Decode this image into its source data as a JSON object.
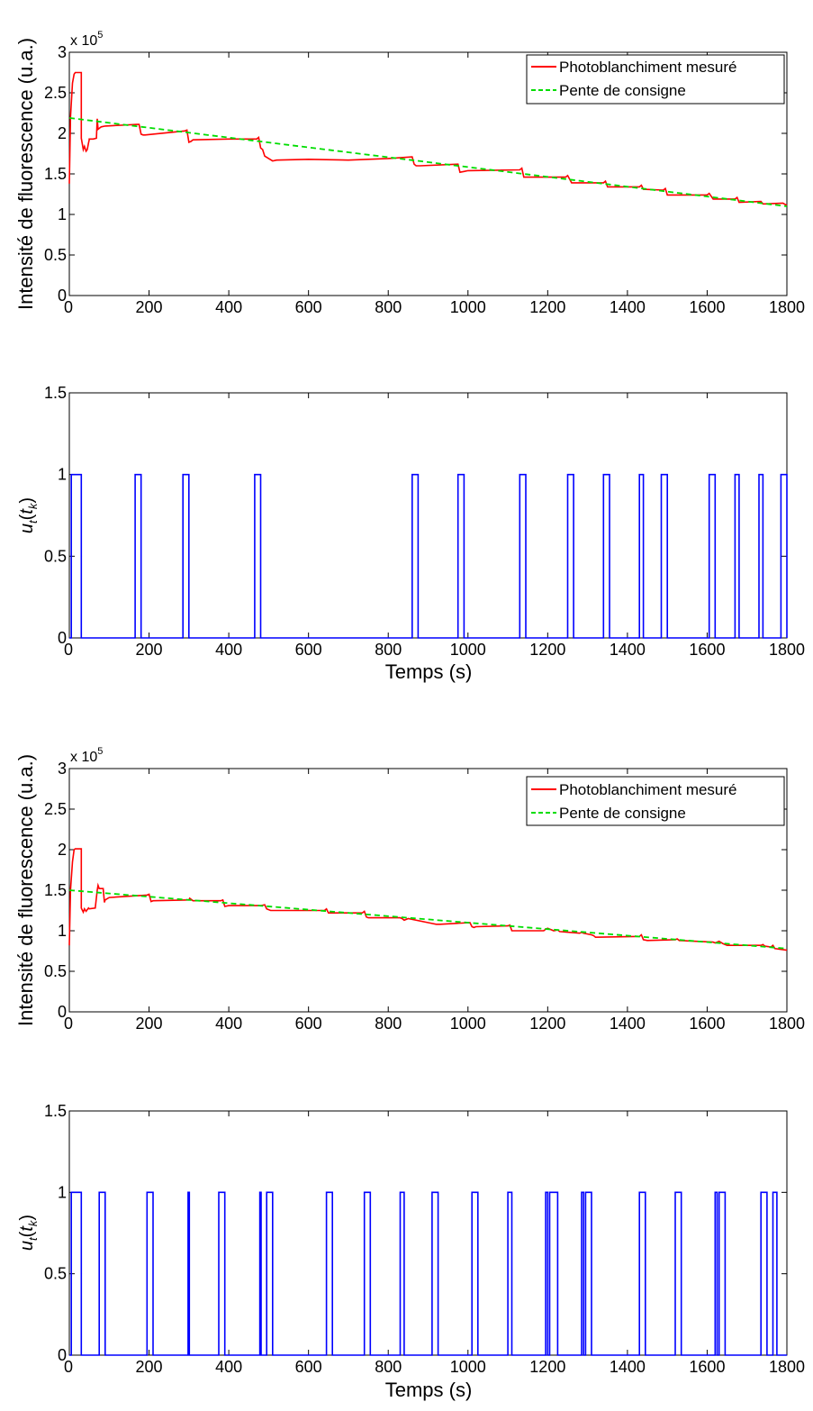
{
  "chart_data": [
    {
      "type": "line",
      "ylabel": "Intensité de fluorescence (u.a.)",
      "xlabel": "",
      "exponent_label": "x 10",
      "exponent_power": "5",
      "xlim": [
        0,
        1800
      ],
      "ylim": [
        0,
        3
      ],
      "x_ticks": [
        "0",
        "200",
        "400",
        "600",
        "800",
        "1000",
        "1200",
        "1400",
        "1600",
        "1800"
      ],
      "y_ticks": [
        "0",
        "0.5",
        "1",
        "1.5",
        "2",
        "2.5",
        "3"
      ],
      "legend": {
        "position": "top-right",
        "entries": [
          "Photoblanchiment mesuré",
          "Pente de consigne"
        ]
      },
      "colors": {
        "measured": "#ff0000",
        "setpoint": "#00dd00"
      },
      "series": [
        {
          "name": "Photoblanchiment mesuré",
          "style": "solid",
          "x": [
            0,
            3,
            8,
            12,
            15,
            15,
            30,
            30,
            35,
            38,
            42,
            45,
            48,
            50,
            50,
            60,
            68,
            70,
            72,
            80,
            90,
            170,
            175,
            180,
            185,
            190,
            290,
            295,
            300,
            305,
            310,
            400,
            470,
            475,
            480,
            485,
            490,
            500,
            510,
            520,
            600,
            700,
            800,
            860,
            865,
            870,
            880,
            975,
            980,
            990,
            1000,
            1130,
            1135,
            1140,
            1150,
            1245,
            1250,
            1260,
            1340,
            1345,
            1350,
            1430,
            1435,
            1440,
            1490,
            1495,
            1500,
            1600,
            1605,
            1615,
            1670,
            1675,
            1680,
            1735,
            1740,
            1745,
            1790,
            1800
          ],
          "y": [
            1.38,
            2.2,
            2.62,
            2.73,
            2.75,
            2.75,
            2.75,
            1.94,
            1.8,
            1.84,
            1.78,
            1.8,
            1.88,
            1.92,
            1.93,
            1.93,
            1.94,
            2.18,
            2.05,
            2.08,
            2.09,
            2.11,
            2.11,
            1.99,
            1.98,
            1.98,
            2.03,
            2.04,
            1.89,
            1.9,
            1.92,
            1.93,
            1.93,
            1.95,
            1.82,
            1.8,
            1.72,
            1.69,
            1.66,
            1.67,
            1.68,
            1.67,
            1.69,
            1.71,
            1.62,
            1.6,
            1.6,
            1.62,
            1.52,
            1.53,
            1.54,
            1.55,
            1.57,
            1.46,
            1.46,
            1.46,
            1.48,
            1.39,
            1.39,
            1.41,
            1.34,
            1.34,
            1.36,
            1.31,
            1.3,
            1.32,
            1.24,
            1.24,
            1.26,
            1.19,
            1.19,
            1.21,
            1.15,
            1.16,
            1.13,
            1.13,
            1.14,
            1.11
          ]
        },
        {
          "name": "Pente de consigne",
          "style": "dashed",
          "x": [
            0,
            1800
          ],
          "y": [
            2.19,
            1.1
          ]
        }
      ]
    },
    {
      "type": "line",
      "ylabel": "u_t(t_k)",
      "ylabel_parts": {
        "main": "u",
        "sub1": "t",
        "open": "(",
        "var": "t",
        "sub2": "k",
        "close": ")"
      },
      "xlabel": "Temps (s)",
      "xlim": [
        0,
        1800
      ],
      "ylim": [
        0,
        1.5
      ],
      "x_ticks": [
        "0",
        "200",
        "400",
        "600",
        "800",
        "1000",
        "1200",
        "1400",
        "1600",
        "1800"
      ],
      "y_ticks": [
        "0",
        "0.5",
        "1",
        "1.5"
      ],
      "colors": {
        "control": "#0000ff"
      },
      "series": [
        {
          "pulses": [
            [
              5,
              30
            ],
            [
              165,
              180
            ],
            [
              285,
              300
            ],
            [
              465,
              480
            ],
            [
              860,
              875
            ],
            [
              975,
              990
            ],
            [
              1130,
              1145
            ],
            [
              1250,
              1265
            ],
            [
              1340,
              1355
            ],
            [
              1430,
              1440
            ],
            [
              1485,
              1500
            ],
            [
              1605,
              1620
            ],
            [
              1670,
              1680
            ],
            [
              1730,
              1740
            ],
            [
              1785,
              1800
            ]
          ]
        }
      ]
    },
    {
      "type": "line",
      "ylabel": "Intensité de fluorescence (u.a.)",
      "xlabel": "",
      "exponent_label": "x 10",
      "exponent_power": "5",
      "xlim": [
        0,
        1800
      ],
      "ylim": [
        0,
        3
      ],
      "x_ticks": [
        "0",
        "200",
        "400",
        "600",
        "800",
        "1000",
        "1200",
        "1400",
        "1600",
        "1800"
      ],
      "y_ticks": [
        "0",
        "0.5",
        "1",
        "1.5",
        "2",
        "2.5",
        "3"
      ],
      "legend": {
        "position": "top-right",
        "entries": [
          "Photoblanchiment mesuré",
          "Pente de consigne"
        ]
      },
      "colors": {
        "measured": "#ff0000",
        "setpoint": "#00dd00"
      },
      "series": [
        {
          "name": "Photoblanchiment mesuré",
          "style": "solid",
          "x": [
            0,
            3,
            8,
            12,
            15,
            15,
            30,
            30,
            35,
            38,
            42,
            45,
            48,
            50,
            50,
            65,
            70,
            72,
            75,
            80,
            85,
            88,
            90,
            100,
            195,
            200,
            205,
            210,
            300,
            302,
            310,
            380,
            385,
            390,
            400,
            480,
            490,
            495,
            505,
            640,
            645,
            650,
            660,
            735,
            740,
            745,
            750,
            830,
            835,
            840,
            850,
            910,
            920,
            930,
            1005,
            1010,
            1015,
            1020,
            1100,
            1105,
            1110,
            1190,
            1195,
            1200,
            1215,
            1225,
            1230,
            1280,
            1285,
            1290,
            1300,
            1310,
            1315,
            1320,
            1430,
            1435,
            1440,
            1450,
            1520,
            1525,
            1530,
            1615,
            1620,
            1625,
            1630,
            1640,
            1650,
            1735,
            1740,
            1745,
            1760,
            1765,
            1770,
            1800
          ],
          "y": [
            0.82,
            1.5,
            1.85,
            2.0,
            2.01,
            2.01,
            2.01,
            1.28,
            1.23,
            1.27,
            1.24,
            1.26,
            1.28,
            1.27,
            1.27,
            1.28,
            1.5,
            1.56,
            1.52,
            1.52,
            1.52,
            1.35,
            1.38,
            1.41,
            1.44,
            1.45,
            1.36,
            1.37,
            1.38,
            1.4,
            1.37,
            1.37,
            1.38,
            1.3,
            1.31,
            1.31,
            1.32,
            1.27,
            1.25,
            1.25,
            1.27,
            1.22,
            1.22,
            1.22,
            1.24,
            1.17,
            1.16,
            1.16,
            1.15,
            1.13,
            1.15,
            1.09,
            1.08,
            1.08,
            1.1,
            1.05,
            1.04,
            1.05,
            1.06,
            1.07,
            1.0,
            1.0,
            1.02,
            1.03,
            1.0,
            1.01,
            0.99,
            0.97,
            0.98,
            0.97,
            0.96,
            0.95,
            0.94,
            0.92,
            0.93,
            0.95,
            0.89,
            0.88,
            0.89,
            0.9,
            0.88,
            0.86,
            0.85,
            0.86,
            0.87,
            0.84,
            0.82,
            0.82,
            0.83,
            0.81,
            0.8,
            0.82,
            0.78,
            0.76
          ]
        },
        {
          "name": "Pente de consigne",
          "style": "dashed",
          "x": [
            0,
            1800
          ],
          "y": [
            1.5,
            0.78
          ]
        }
      ]
    },
    {
      "type": "line",
      "ylabel": "u_t(t_k)",
      "ylabel_parts": {
        "main": "u",
        "sub1": "t",
        "open": "(",
        "var": "t",
        "sub2": "k",
        "close": ")"
      },
      "xlabel": "Temps (s)",
      "xlim": [
        0,
        1800
      ],
      "ylim": [
        0,
        1.5
      ],
      "x_ticks": [
        "0",
        "200",
        "400",
        "600",
        "800",
        "1000",
        "1200",
        "1400",
        "1600",
        "1800"
      ],
      "y_ticks": [
        "0",
        "0.5",
        "1",
        "1.5"
      ],
      "colors": {
        "control": "#0000ff"
      },
      "series": [
        {
          "pulses": [
            [
              5,
              30
            ],
            [
              75,
              90
            ],
            [
              195,
              210
            ],
            [
              298,
              301
            ],
            [
              375,
              390
            ],
            [
              478,
              481
            ],
            [
              495,
              510
            ],
            [
              645,
              660
            ],
            [
              740,
              755
            ],
            [
              830,
              840
            ],
            [
              910,
              925
            ],
            [
              1010,
              1025
            ],
            [
              1100,
              1110
            ],
            [
              1195,
              1200
            ],
            [
              1205,
              1225
            ],
            [
              1285,
              1290
            ],
            [
              1295,
              1310
            ],
            [
              1430,
              1445
            ],
            [
              1520,
              1535
            ],
            [
              1620,
              1625
            ],
            [
              1630,
              1645
            ],
            [
              1735,
              1750
            ],
            [
              1765,
              1775
            ]
          ]
        }
      ]
    }
  ]
}
